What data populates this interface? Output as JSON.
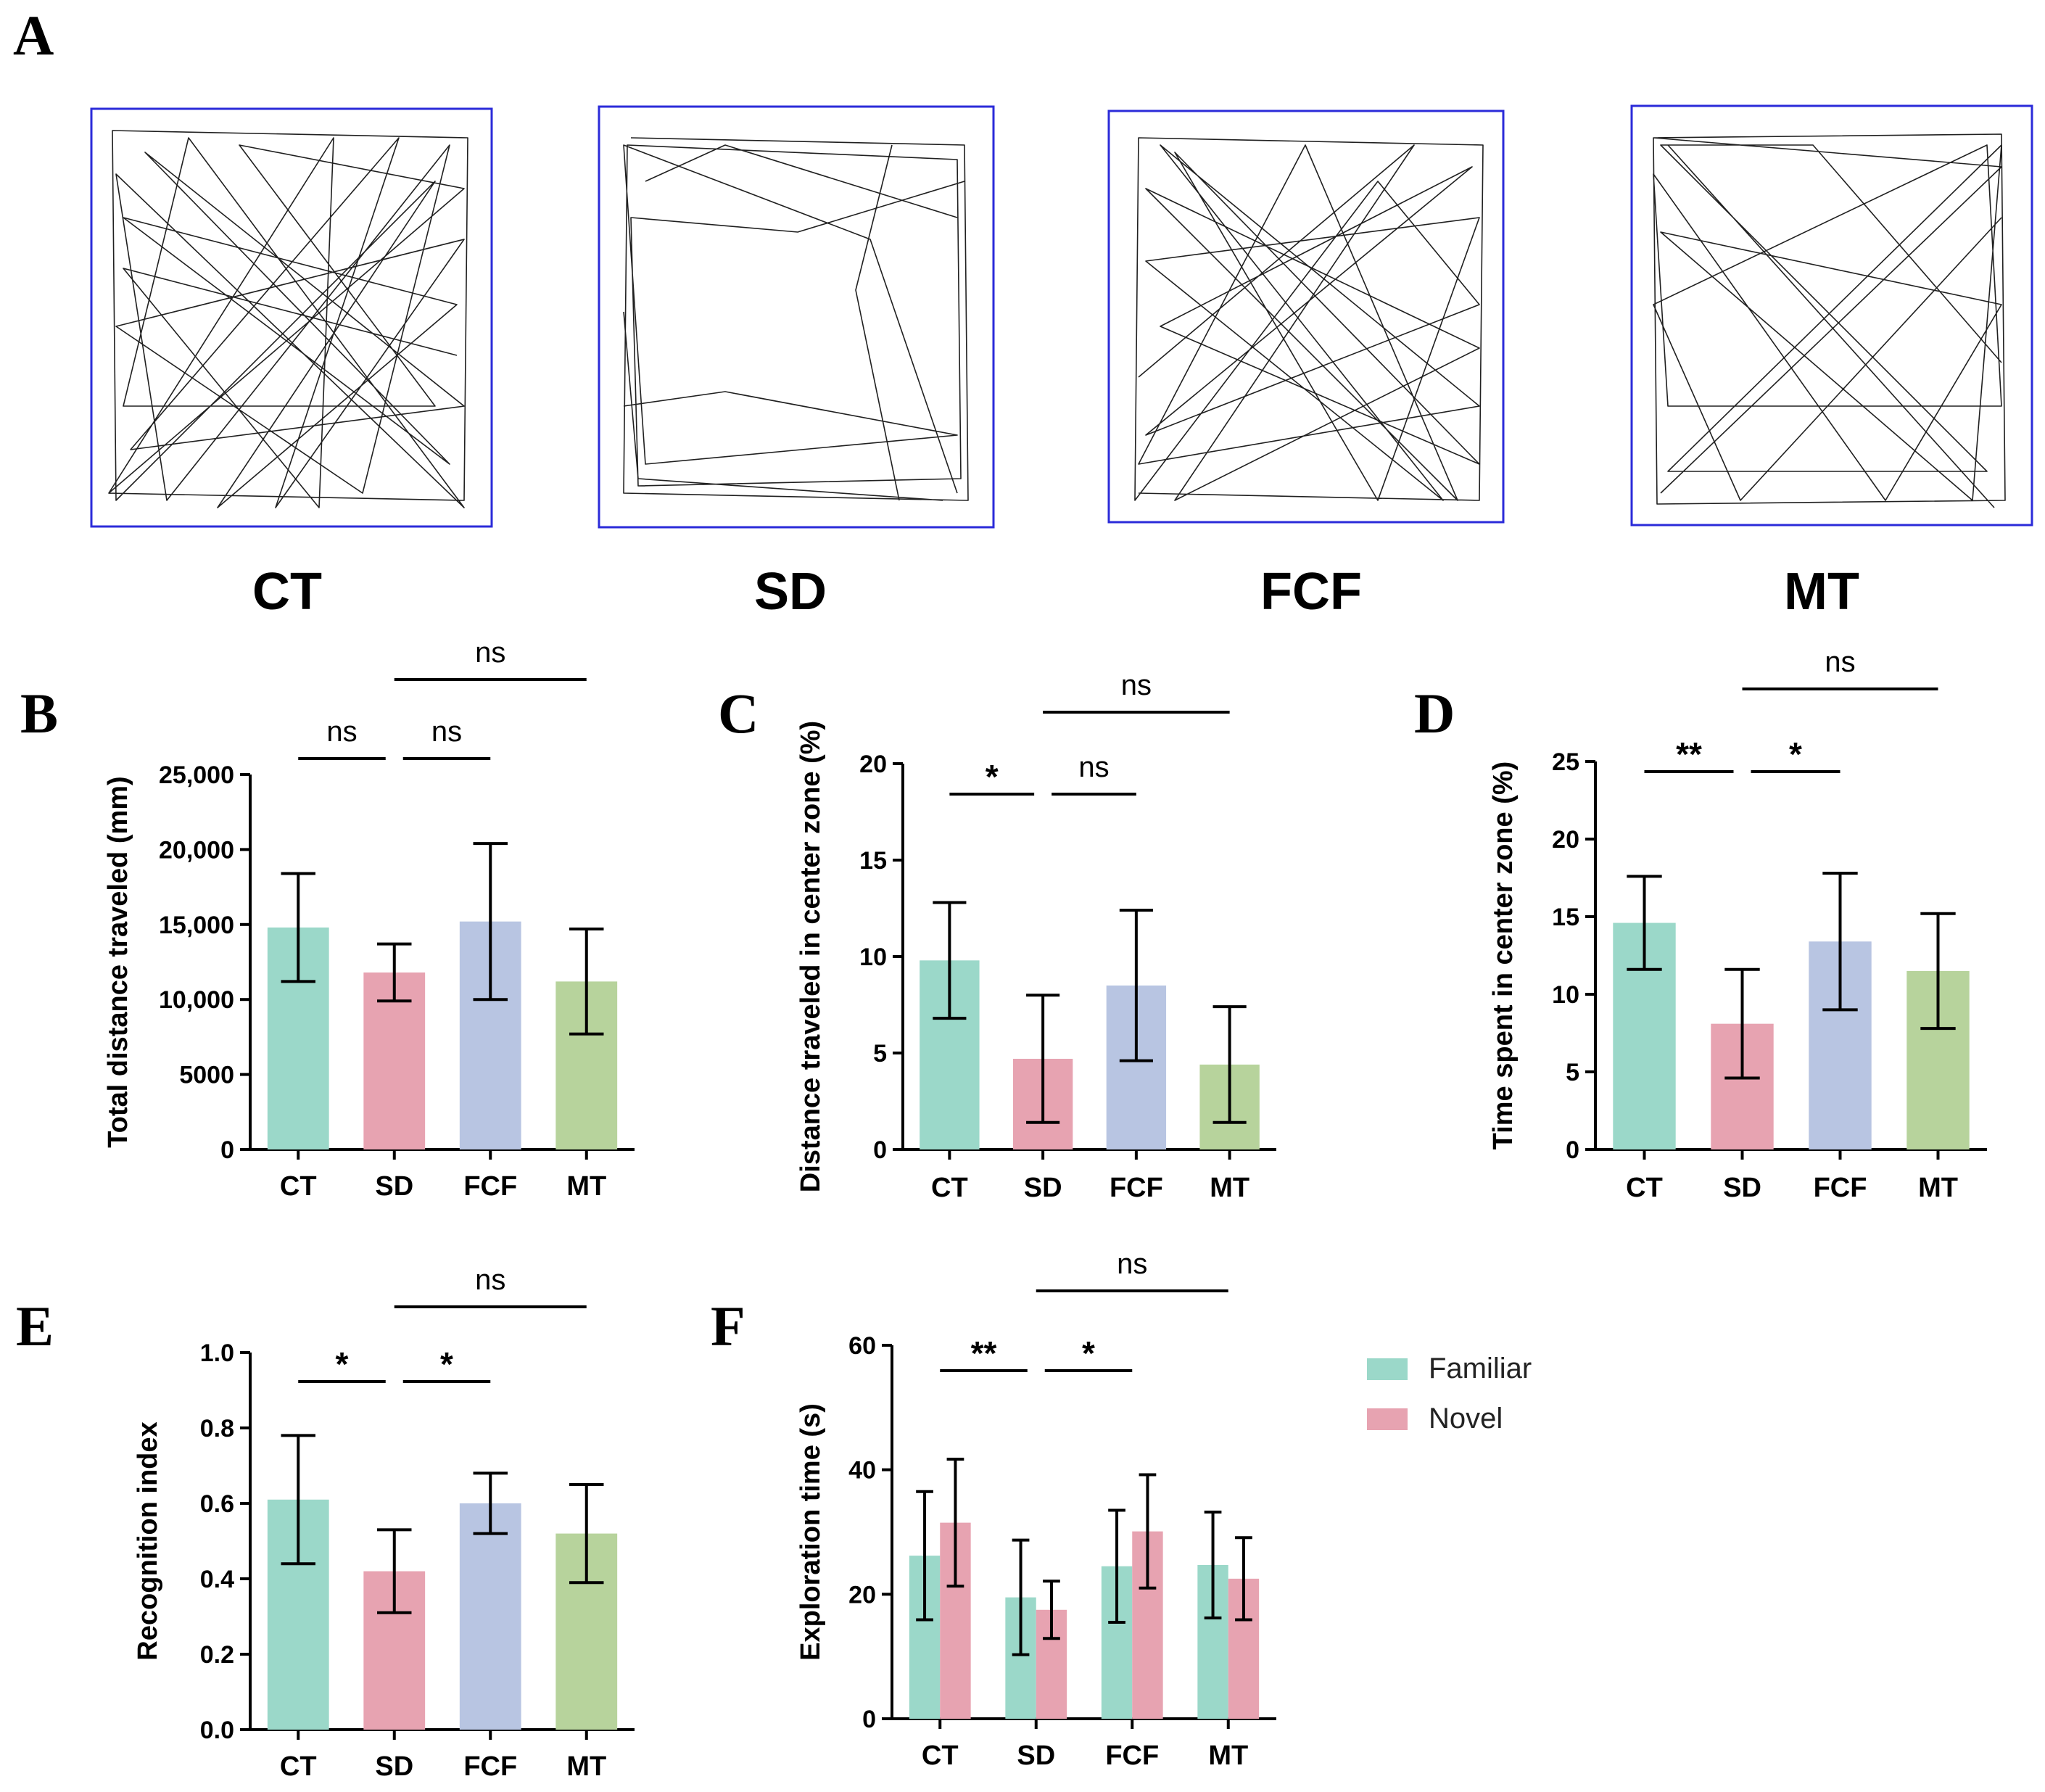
{
  "panel_a": {
    "letter": "A",
    "arenas": [
      {
        "key": "ct",
        "title": "CT"
      },
      {
        "key": "sd",
        "title": "SD"
      },
      {
        "key": "fcf",
        "title": "FCF"
      },
      {
        "key": "mt",
        "title": "MT"
      }
    ]
  },
  "colors": {
    "CT": "#9bd8c9",
    "SD": "#e7a3b1",
    "FCF": "#b8c5e2",
    "MT": "#b7d39c",
    "Familiar": "#9bd8c9",
    "Novel": "#e7a3b1"
  },
  "legend": {
    "items": [
      {
        "label": "Familiar",
        "color_key": "Familiar"
      },
      {
        "label": "Novel",
        "color_key": "Novel"
      }
    ]
  },
  "chart_data": [
    {
      "panel": "B",
      "type": "bar",
      "ylabel": "Total distance traveled (mm)",
      "categories": [
        "CT",
        "SD",
        "FCF",
        "MT"
      ],
      "values": [
        14800,
        11800,
        15200,
        11200
      ],
      "errors": [
        3600,
        1900,
        5200,
        3500
      ],
      "ylim": [
        0,
        25000
      ],
      "yticks": [
        0,
        5000,
        10000,
        15000,
        20000,
        25000
      ],
      "ytick_labels": [
        "0",
        "5000",
        "10,000",
        "15,000",
        "20,000",
        "25,000"
      ],
      "significance": [
        {
          "from": "CT",
          "to": "SD",
          "label": "ns",
          "level": 1
        },
        {
          "from": "SD",
          "to": "FCF",
          "label": "ns",
          "level": 1
        },
        {
          "from": "SD",
          "to": "MT",
          "label": "ns",
          "level": 2
        }
      ]
    },
    {
      "panel": "C",
      "type": "bar",
      "ylabel": "Distance traveled in center zone (%)",
      "categories": [
        "CT",
        "SD",
        "FCF",
        "MT"
      ],
      "values": [
        9.8,
        4.7,
        8.5,
        4.4
      ],
      "errors": [
        3.0,
        3.3,
        3.9,
        3.0
      ],
      "ylim": [
        0,
        20
      ],
      "yticks": [
        0,
        5,
        10,
        15,
        20
      ],
      "ytick_labels": [
        "0",
        "5",
        "10",
        "15",
        "20"
      ],
      "significance": [
        {
          "from": "CT",
          "to": "SD",
          "label": "*",
          "level": 1
        },
        {
          "from": "SD",
          "to": "FCF",
          "label": "ns",
          "level": 1
        },
        {
          "from": "SD",
          "to": "MT",
          "label": "ns",
          "level": 2
        }
      ]
    },
    {
      "panel": "D",
      "type": "bar",
      "ylabel": "Time spent in center zone (%)",
      "categories": [
        "CT",
        "SD",
        "FCF",
        "MT"
      ],
      "values": [
        14.6,
        8.1,
        13.4,
        11.5
      ],
      "errors": [
        3.0,
        3.5,
        4.4,
        3.7
      ],
      "ylim": [
        0,
        25
      ],
      "yticks": [
        0,
        5,
        10,
        15,
        20,
        25
      ],
      "ytick_labels": [
        "0",
        "5",
        "10",
        "15",
        "20",
        "25"
      ],
      "significance": [
        {
          "from": "CT",
          "to": "SD",
          "label": "**",
          "level": 1
        },
        {
          "from": "SD",
          "to": "FCF",
          "label": "*",
          "level": 1
        },
        {
          "from": "SD",
          "to": "MT",
          "label": "ns",
          "level": 2
        }
      ]
    },
    {
      "panel": "E",
      "type": "bar",
      "ylabel": "Recognition index",
      "categories": [
        "CT",
        "SD",
        "FCF",
        "MT"
      ],
      "values": [
        0.61,
        0.42,
        0.6,
        0.52
      ],
      "errors": [
        0.17,
        0.11,
        0.08,
        0.13
      ],
      "ylim": [
        0,
        1.0
      ],
      "yticks": [
        0,
        0.2,
        0.4,
        0.6,
        0.8,
        1.0
      ],
      "ytick_labels": [
        "0.0",
        "0.2",
        "0.4",
        "0.6",
        "0.8",
        "1.0"
      ],
      "significance": [
        {
          "from": "CT",
          "to": "SD",
          "label": "*",
          "level": 1
        },
        {
          "from": "SD",
          "to": "FCF",
          "label": "*",
          "level": 1
        },
        {
          "from": "SD",
          "to": "MT",
          "label": "ns",
          "level": 2
        }
      ]
    },
    {
      "panel": "F",
      "type": "bar",
      "ylabel": "Exploration time (s)",
      "categories": [
        "CT",
        "SD",
        "FCF",
        "MT"
      ],
      "series": [
        {
          "name": "Familiar",
          "values": [
            26.2,
            19.5,
            24.5,
            24.7
          ],
          "errors": [
            10.3,
            9.2,
            9.0,
            8.5
          ]
        },
        {
          "name": "Novel",
          "values": [
            31.5,
            17.5,
            30.1,
            22.5
          ],
          "errors": [
            10.2,
            4.6,
            9.1,
            6.6
          ]
        }
      ],
      "ylim": [
        0,
        60
      ],
      "yticks": [
        0,
        20,
        40,
        60
      ],
      "ytick_labels": [
        "0",
        "20",
        "40",
        "60"
      ],
      "significance": [
        {
          "from": "CT",
          "to": "SD",
          "label": "**",
          "level": 1
        },
        {
          "from": "SD",
          "to": "FCF",
          "label": "*",
          "level": 1
        },
        {
          "from": "SD",
          "to": "MT",
          "label": "ns",
          "level": 2
        }
      ]
    }
  ]
}
